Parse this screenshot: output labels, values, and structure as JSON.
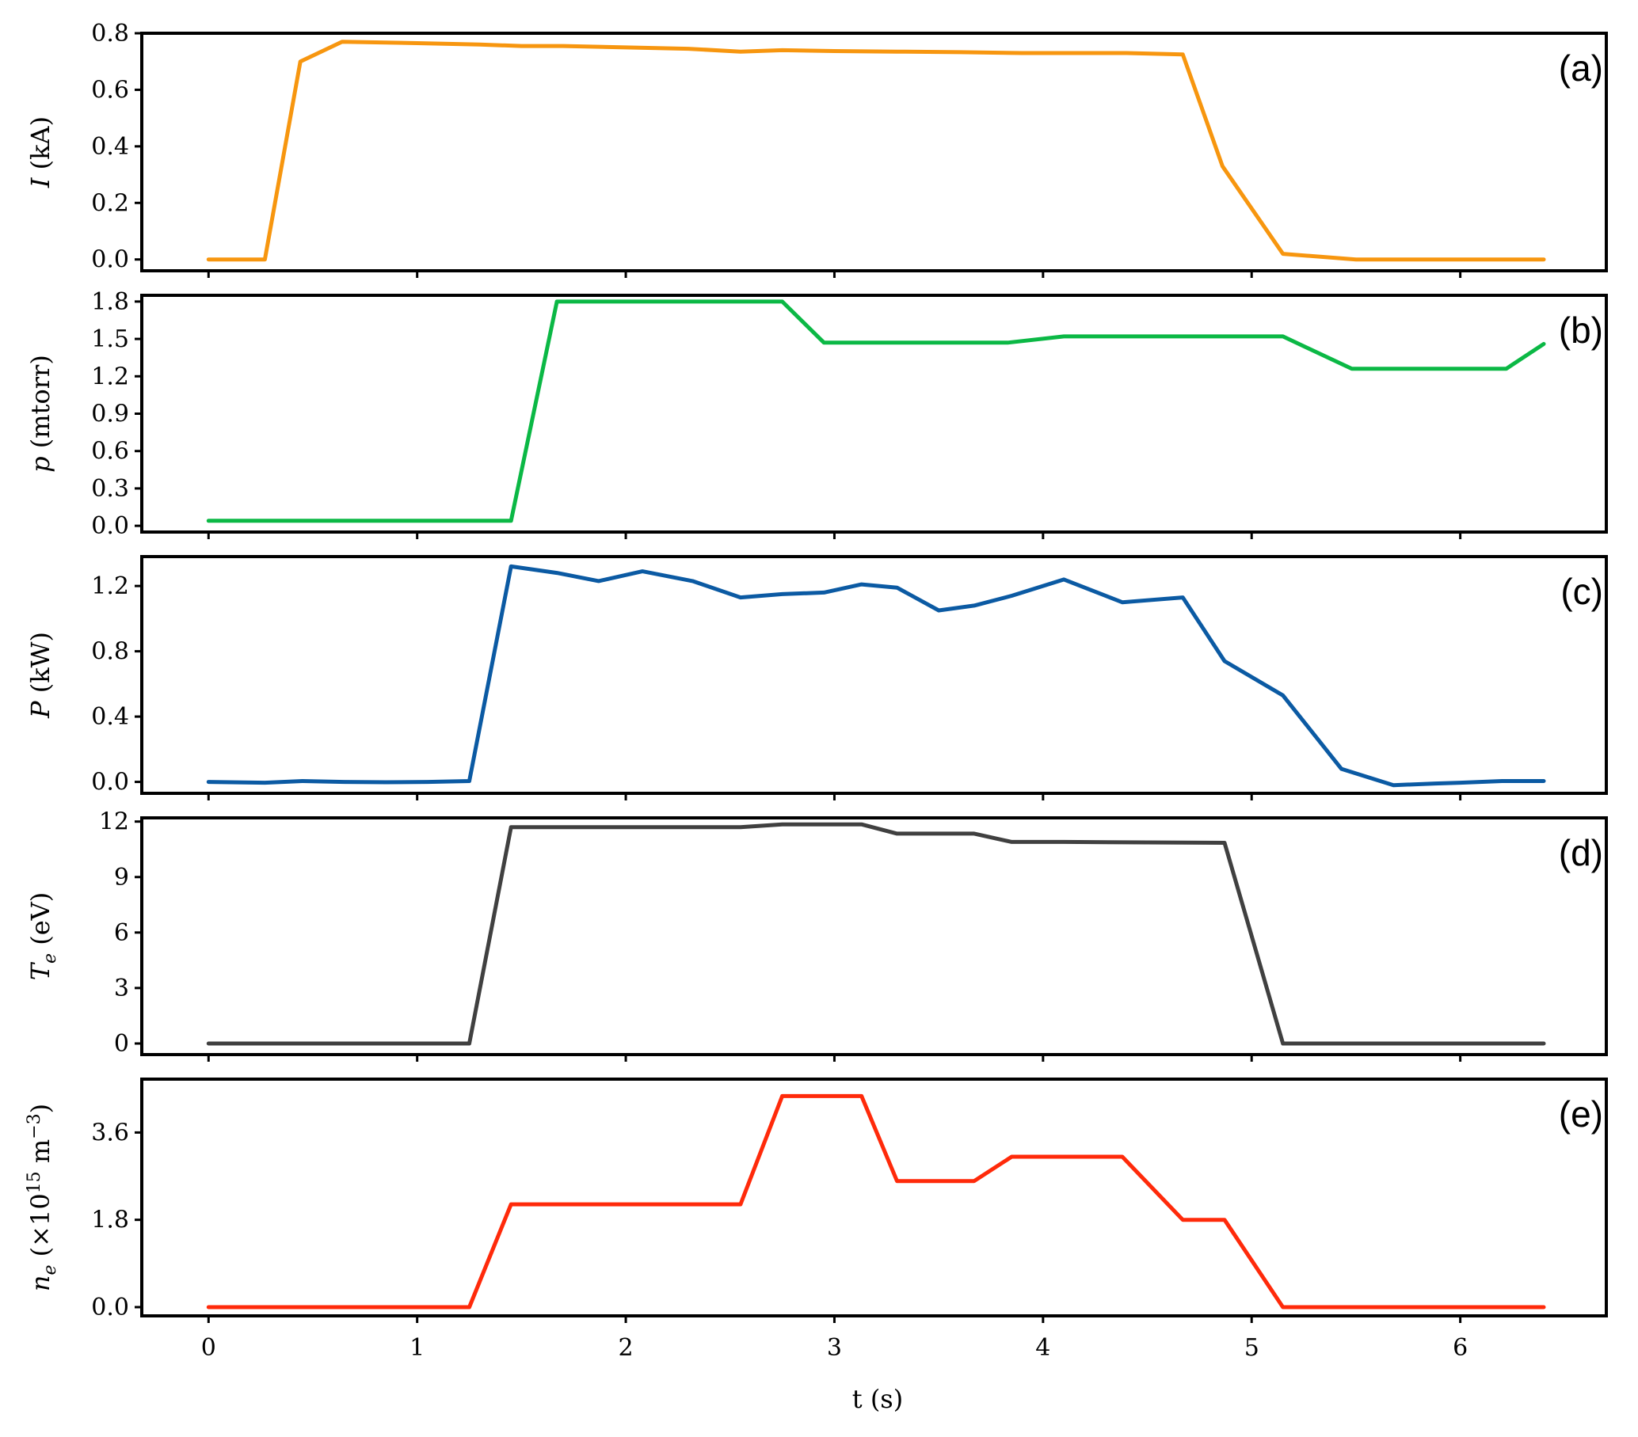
{
  "chart_data": {
    "type": "line",
    "xlabel": "t (s)",
    "xlim": [
      -0.32,
      6.7
    ],
    "xticks": [
      0,
      1,
      2,
      3,
      4,
      5,
      6
    ],
    "xtick_labels": [
      "0",
      "1",
      "2",
      "3",
      "4",
      "5",
      "6"
    ],
    "grid": false,
    "panels": [
      {
        "tag": "(a)",
        "ylabel": "I (kA)",
        "color": "#F7960F",
        "ylim": [
          -0.04,
          0.8
        ],
        "yticks": [
          0.0,
          0.2,
          0.4,
          0.6,
          0.8
        ],
        "ytick_labels": [
          "0.0",
          "0.2",
          "0.4",
          "0.6",
          "0.8"
        ],
        "x": [
          0,
          0.27,
          0.44,
          0.64,
          1.0,
          1.3,
          1.5,
          1.7,
          2.0,
          2.3,
          2.55,
          2.75,
          3.0,
          3.3,
          3.6,
          3.9,
          4.1,
          4.4,
          4.67,
          4.86,
          5.15,
          5.5,
          6.0,
          6.4
        ],
        "y": [
          0.0,
          0.0,
          0.7,
          0.77,
          0.765,
          0.76,
          0.755,
          0.755,
          0.75,
          0.745,
          0.735,
          0.74,
          0.737,
          0.735,
          0.733,
          0.73,
          0.73,
          0.73,
          0.725,
          0.33,
          0.02,
          0.0,
          0.0,
          0.0
        ]
      },
      {
        "tag": "(b)",
        "ylabel": "p (mtorr)",
        "color": "#0BB845",
        "ylim": [
          -0.05,
          1.85
        ],
        "yticks": [
          0.0,
          0.3,
          0.6,
          0.9,
          1.2,
          1.5,
          1.8
        ],
        "ytick_labels": [
          "0.0",
          "0.3",
          "0.6",
          "0.9",
          "1.2",
          "1.5",
          "1.8"
        ],
        "x": [
          0,
          1.45,
          1.67,
          2.75,
          2.95,
          3.83,
          4.1,
          5.15,
          5.48,
          6.22,
          6.4
        ],
        "y": [
          0.04,
          0.04,
          1.8,
          1.8,
          1.47,
          1.47,
          1.52,
          1.52,
          1.26,
          1.26,
          1.46
        ]
      },
      {
        "tag": "(c)",
        "ylabel": "P (kW)",
        "color": "#0B5AA3",
        "ylim": [
          -0.07,
          1.38
        ],
        "yticks": [
          0.0,
          0.4,
          0.8,
          1.2
        ],
        "ytick_labels": [
          "0.0",
          "0.4",
          "0.8",
          "1.2"
        ],
        "x": [
          0,
          0.27,
          0.45,
          0.65,
          0.85,
          1.05,
          1.25,
          1.45,
          1.67,
          1.87,
          2.08,
          2.32,
          2.55,
          2.75,
          2.95,
          3.13,
          3.3,
          3.5,
          3.67,
          3.85,
          4.1,
          4.38,
          4.67,
          4.87,
          5.15,
          5.43,
          5.68,
          5.88,
          6.0,
          6.2,
          6.4
        ],
        "y": [
          0.0,
          -0.005,
          0.005,
          0.0,
          -0.002,
          0.0,
          0.005,
          1.32,
          1.28,
          1.23,
          1.29,
          1.23,
          1.13,
          1.15,
          1.16,
          1.21,
          1.19,
          1.05,
          1.08,
          1.14,
          1.24,
          1.1,
          1.13,
          0.74,
          0.53,
          0.08,
          -0.02,
          -0.01,
          -0.005,
          0.005,
          0.005
        ]
      },
      {
        "tag": "(d)",
        "ylabel": "T_e (eV)",
        "color": "#404040",
        "ylim": [
          -0.6,
          12.2
        ],
        "yticks": [
          0,
          3,
          6,
          9,
          12
        ],
        "ytick_labels": [
          "0",
          "3",
          "6",
          "9",
          "12"
        ],
        "x": [
          0,
          1.25,
          1.45,
          2.55,
          2.75,
          3.13,
          3.3,
          3.67,
          3.85,
          4.1,
          4.87,
          5.15,
          6.4
        ],
        "y": [
          0,
          0,
          11.7,
          11.7,
          11.85,
          11.85,
          11.35,
          11.35,
          10.9,
          10.9,
          10.85,
          0,
          0
        ]
      },
      {
        "tag": "(e)",
        "ylabel": "n_e (×10^15 m^-3)",
        "color": "#FF2A0A",
        "ylim": [
          -0.18,
          4.7
        ],
        "yticks": [
          0.0,
          1.8,
          3.6
        ],
        "ytick_labels": [
          "0.0",
          "1.8",
          "3.6"
        ],
        "x": [
          0,
          1.25,
          1.45,
          2.55,
          2.75,
          3.13,
          3.3,
          3.67,
          3.85,
          4.38,
          4.67,
          4.87,
          5.15,
          6.4
        ],
        "y": [
          0,
          0,
          2.12,
          2.12,
          4.35,
          4.35,
          2.6,
          2.6,
          3.1,
          3.1,
          1.8,
          1.8,
          0,
          0
        ]
      }
    ]
  }
}
